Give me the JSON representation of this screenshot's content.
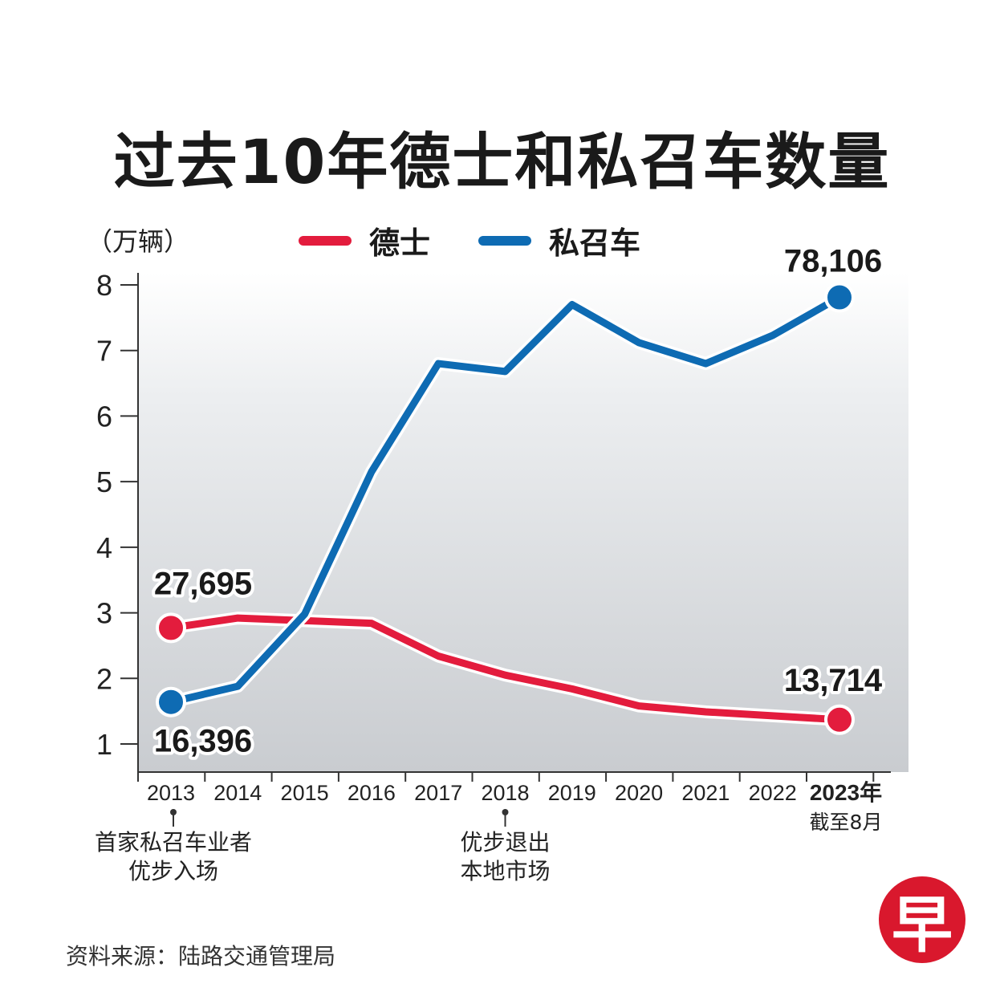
{
  "title": "过去10年德士和私召车数量",
  "unit_label": "（万辆）",
  "legend": [
    {
      "label": "德士",
      "color": "#e31c3d"
    },
    {
      "label": "私召车",
      "color": "#0e6bb3"
    }
  ],
  "chart_data": {
    "type": "line",
    "title": "过去10年德士和私召车数量",
    "ylabel": "（万辆）",
    "ylim": [
      0.5,
      8.2
    ],
    "yticks": [
      1,
      2,
      3,
      4,
      5,
      6,
      7,
      8
    ],
    "categories": [
      "2013",
      "2014",
      "2015",
      "2016",
      "2017",
      "2018",
      "2019",
      "2020",
      "2021",
      "2022",
      "2023年"
    ],
    "category_sublabels": [
      "",
      "",
      "",
      "",
      "",
      "",
      "",
      "",
      "",
      "",
      "截至8月"
    ],
    "grid": false,
    "legend_position": "top-center",
    "series": [
      {
        "name": "德士",
        "color": "#e31c3d",
        "values": [
          2.77,
          2.92,
          2.88,
          2.84,
          2.34,
          2.05,
          1.84,
          1.58,
          1.49,
          1.43,
          1.37
        ]
      },
      {
        "name": "私召车",
        "color": "#0e6bb3",
        "values": [
          1.64,
          1.88,
          2.98,
          5.15,
          6.8,
          6.68,
          7.7,
          7.12,
          6.8,
          7.23,
          7.81
        ]
      }
    ],
    "data_labels": [
      {
        "series": "德士",
        "category": "2013",
        "text": "27,695"
      },
      {
        "series": "私召车",
        "category": "2013",
        "text": "16,396"
      },
      {
        "series": "私召车",
        "category": "2023年",
        "text": "78,106"
      },
      {
        "series": "德士",
        "category": "2023年",
        "text": "13,714"
      }
    ],
    "annotations": [
      {
        "category": "2013",
        "lines": [
          "首家私召车业者",
          "优步入场"
        ]
      },
      {
        "category": "2018",
        "lines": [
          "优步退出",
          "本地市场"
        ]
      }
    ]
  },
  "source": "资料来源：陆路交通管理局",
  "logo_char": "早"
}
